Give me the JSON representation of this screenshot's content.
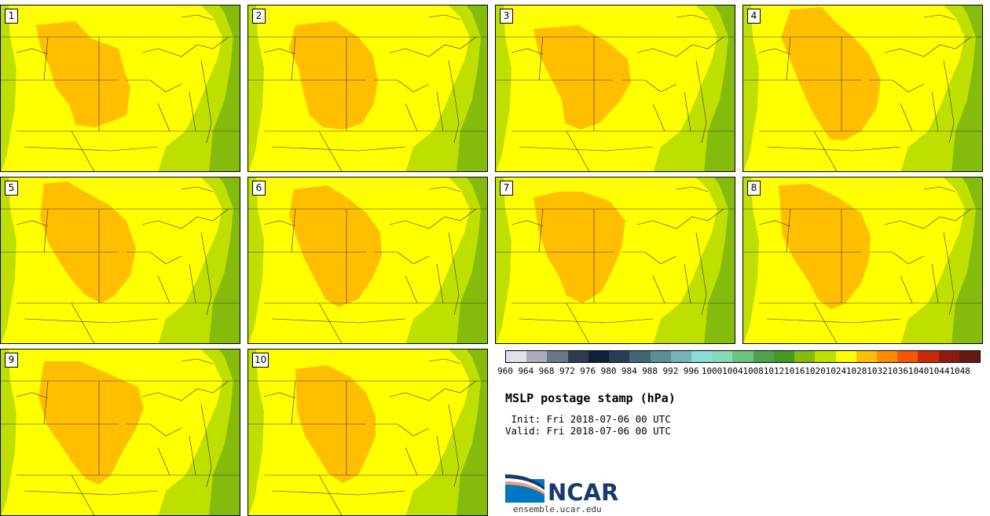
{
  "panels": [
    {
      "label": "1"
    },
    {
      "label": "2"
    },
    {
      "label": "3"
    },
    {
      "label": "4"
    },
    {
      "label": "5"
    },
    {
      "label": "6"
    },
    {
      "label": "7"
    },
    {
      "label": "8"
    },
    {
      "label": "9"
    },
    {
      "label": "10"
    }
  ],
  "colorbar": {
    "ticks": [
      "960",
      "964",
      "968",
      "972",
      "976",
      "980",
      "984",
      "988",
      "992",
      "996",
      "1000",
      "1004",
      "1008",
      "1012",
      "1016",
      "1020",
      "1024",
      "1028",
      "1032",
      "1036",
      "1040",
      "1044",
      "1048"
    ],
    "colors": [
      "#dde2ea",
      "#a9adbe",
      "#6c7589",
      "#2e3b52",
      "#11203a",
      "#283e56",
      "#436677",
      "#5c8e98",
      "#74b2b8",
      "#8cdcd3",
      "#8ad7b9",
      "#6cc381",
      "#4fa24a",
      "#439a23",
      "#84bb0c",
      "#bfdf00",
      "#ffff00",
      "#ffbf00",
      "#ff8c00",
      "#f75600",
      "#c82a0a",
      "#8f1b12",
      "#621b13"
    ]
  },
  "title": "MSLP postage stamp (hPa)",
  "init": " Init: Fri 2018-07-06 00 UTC",
  "valid": "Valid: Fri 2018-07-06 00 UTC",
  "logo": {
    "text": "NCAR",
    "site": "ensemble.ucar.edu",
    "brand_blue": "#0077c0",
    "brand_navy": "#163a70"
  },
  "map_colors": {
    "high_1028": "#ffbf00",
    "mid_1024": "#ffff00",
    "low_1020": "#bfdf00",
    "lower_1016": "#84bb0c",
    "border": "#333333"
  }
}
